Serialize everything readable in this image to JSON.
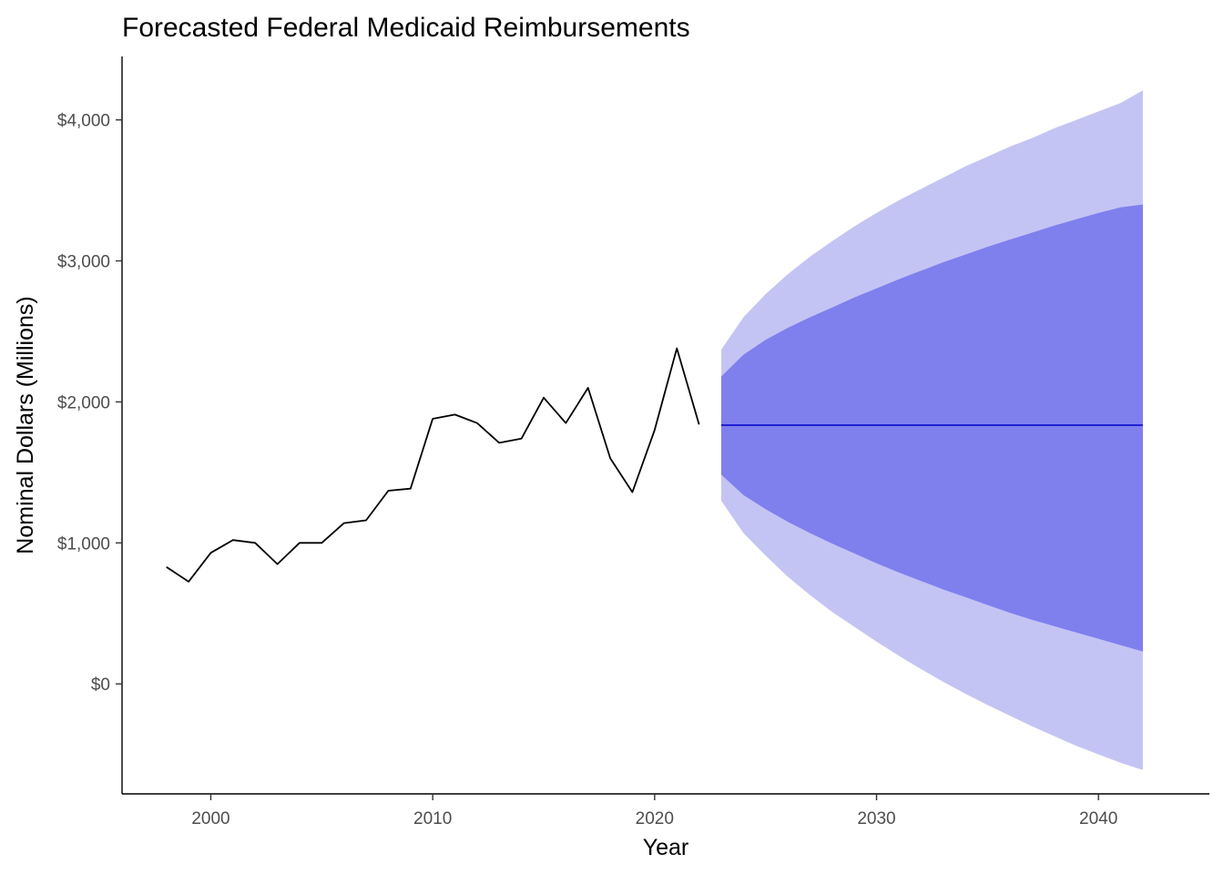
{
  "chart_data": {
    "type": "line",
    "title": "Forecasted Federal Medicaid Reimbursements",
    "xlabel": "Year",
    "ylabel": "Nominal Dollars (Millions)",
    "xlim": [
      1996,
      2045
    ],
    "ylim": [
      -780,
      4450
    ],
    "x_ticks": [
      2000,
      2010,
      2020,
      2030,
      2040
    ],
    "x_tick_labels": [
      "2000",
      "2010",
      "2020",
      "2030",
      "2040"
    ],
    "y_ticks": [
      0,
      1000,
      2000,
      3000,
      4000
    ],
    "y_tick_labels": [
      "$0",
      "$1,000",
      "$2,000",
      "$3,000",
      "$4,000"
    ],
    "grid": false,
    "legend": "none",
    "series": [
      {
        "kind": "historical",
        "color": "#000000",
        "x": [
          1998,
          1999,
          2000,
          2001,
          2002,
          2003,
          2004,
          2005,
          2006,
          2007,
          2008,
          2009,
          2010,
          2011,
          2012,
          2013,
          2014,
          2015,
          2016,
          2017,
          2018,
          2019,
          2020,
          2021,
          2022
        ],
        "y": [
          830,
          725,
          930,
          1020,
          1000,
          850,
          1000,
          1000,
          1140,
          1160,
          1370,
          1385,
          1880,
          1910,
          1850,
          1710,
          1740,
          2030,
          1850,
          2100,
          1600,
          1360,
          1800,
          2380,
          1840
        ]
      },
      {
        "kind": "point-forecast",
        "color": "#0000cc",
        "x": [
          2023,
          2042
        ],
        "y": [
          1835,
          1835
        ]
      }
    ],
    "forecast_intervals": {
      "x": [
        2023,
        2024,
        2025,
        2026,
        2027,
        2028,
        2029,
        2030,
        2031,
        2032,
        2033,
        2034,
        2035,
        2036,
        2037,
        2038,
        2039,
        2040,
        2041,
        2042
      ],
      "band80": {
        "color": "#7f7fee",
        "lower": [
          1485,
          1340,
          1240,
          1150,
          1070,
          995,
          925,
          855,
          790,
          730,
          670,
          615,
          560,
          505,
          455,
          410,
          365,
          320,
          275,
          230
        ],
        "upper": [
          2180,
          2335,
          2440,
          2525,
          2600,
          2670,
          2740,
          2805,
          2870,
          2930,
          2990,
          3045,
          3100,
          3150,
          3200,
          3250,
          3295,
          3340,
          3380,
          3400
        ]
      },
      "band95": {
        "color": "#c4c4f4",
        "lower": [
          1300,
          1070,
          910,
          760,
          630,
          510,
          405,
          300,
          200,
          105,
          15,
          -70,
          -150,
          -225,
          -300,
          -370,
          -440,
          -500,
          -560,
          -610
        ],
        "upper": [
          2370,
          2600,
          2765,
          2905,
          3030,
          3140,
          3245,
          3340,
          3430,
          3510,
          3590,
          3670,
          3740,
          3810,
          3870,
          3940,
          4000,
          4060,
          4120,
          4210
        ]
      }
    }
  }
}
